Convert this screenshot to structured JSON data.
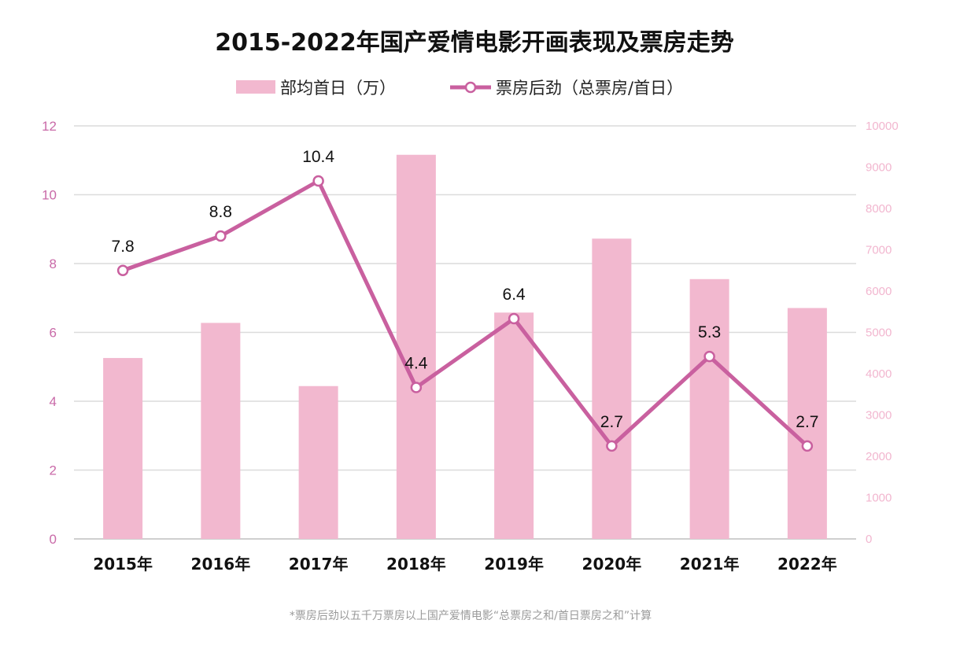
{
  "chart_data": {
    "type": "bar",
    "title": "2015-2022年国产爱情电影开画表现及票房走势",
    "categories": [
      "2015年",
      "2016年",
      "2017年",
      "2018年",
      "2019年",
      "2020年",
      "2021年",
      "2022年"
    ],
    "series": [
      {
        "name": "部均首日（万）",
        "type": "bar",
        "axis": "right",
        "color": "#f2b8cf",
        "values": [
          4380,
          5230,
          3700,
          9300,
          5480,
          7270,
          6290,
          5590
        ]
      },
      {
        "name": "票房后劲（总票房/首日）",
        "type": "line",
        "axis": "left",
        "color": "#c9609f",
        "values": [
          7.8,
          8.8,
          10.4,
          4.4,
          6.4,
          2.7,
          5.3,
          2.7
        ],
        "labels": [
          "7.8",
          "8.8",
          "10.4",
          "4.4",
          "6.4",
          "2.7",
          "5.3",
          "2.7"
        ]
      }
    ],
    "y_left": {
      "min": 0,
      "max": 12,
      "ticks": [
        "0",
        "2",
        "4",
        "6",
        "8",
        "10",
        "12"
      ]
    },
    "y_right": {
      "min": 0,
      "max": 10000,
      "ticks": [
        "0",
        "1000",
        "2000",
        "3000",
        "4000",
        "5000",
        "6000",
        "7000",
        "8000",
        "9000",
        "10000"
      ]
    },
    "grid": true,
    "legend_position": "top-center",
    "footnote": "*票房后劲以五千万票房以上国产爱情电影“总票房之和/首日票房之和”计算"
  }
}
